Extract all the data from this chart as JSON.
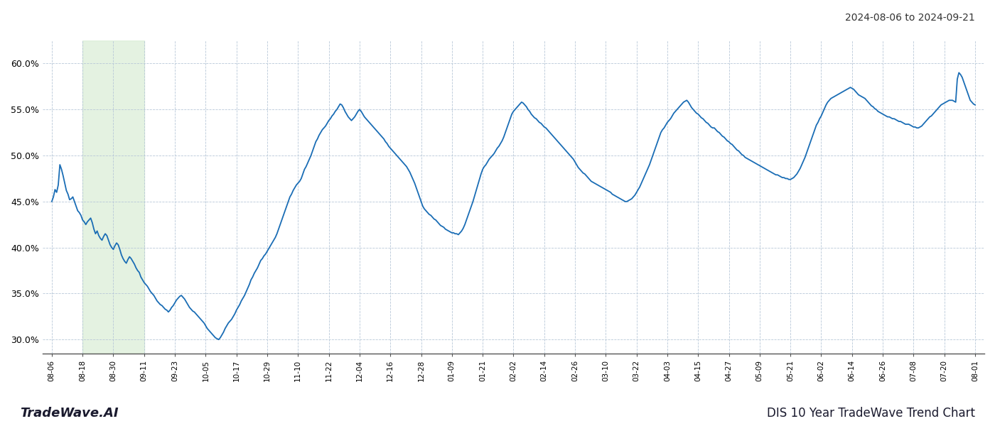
{
  "title_top_right": "2024-08-06 to 2024-09-21",
  "title_bottom_left": "TradeWave.AI",
  "title_bottom_right": "DIS 10 Year TradeWave Trend Chart",
  "ylim": [
    0.285,
    0.625
  ],
  "yticks": [
    0.3,
    0.35,
    0.4,
    0.45,
    0.5,
    0.55,
    0.6
  ],
  "line_color": "#1a6db5",
  "line_width": 1.3,
  "bg_color": "#ffffff",
  "grid_color": "#b8c8d8",
  "shade_color": "#d6ecd2",
  "shade_alpha": 0.65,
  "x_labels": [
    "08-06",
    "08-18",
    "08-30",
    "09-11",
    "09-23",
    "10-05",
    "10-17",
    "10-29",
    "11-10",
    "11-22",
    "12-04",
    "12-16",
    "12-28",
    "01-09",
    "01-21",
    "02-02",
    "02-14",
    "02-26",
    "03-10",
    "03-22",
    "04-03",
    "04-15",
    "04-27",
    "05-09",
    "05-21",
    "06-02",
    "06-14",
    "06-26",
    "07-08",
    "07-20",
    "08-01"
  ],
  "shade_label_start": "08-18",
  "shade_label_end": "09-11",
  "values": [
    0.45,
    0.455,
    0.463,
    0.46,
    0.468,
    0.49,
    0.485,
    0.478,
    0.47,
    0.462,
    0.458,
    0.452,
    0.453,
    0.455,
    0.45,
    0.445,
    0.44,
    0.438,
    0.435,
    0.43,
    0.428,
    0.425,
    0.428,
    0.43,
    0.432,
    0.427,
    0.42,
    0.415,
    0.418,
    0.413,
    0.41,
    0.408,
    0.412,
    0.415,
    0.413,
    0.408,
    0.403,
    0.4,
    0.398,
    0.402,
    0.405,
    0.403,
    0.398,
    0.392,
    0.388,
    0.385,
    0.383,
    0.387,
    0.39,
    0.388,
    0.385,
    0.382,
    0.378,
    0.375,
    0.373,
    0.368,
    0.365,
    0.362,
    0.36,
    0.358,
    0.355,
    0.352,
    0.35,
    0.348,
    0.345,
    0.342,
    0.34,
    0.338,
    0.337,
    0.335,
    0.333,
    0.332,
    0.33,
    0.332,
    0.335,
    0.337,
    0.34,
    0.343,
    0.345,
    0.347,
    0.348,
    0.346,
    0.344,
    0.341,
    0.338,
    0.335,
    0.333,
    0.331,
    0.33,
    0.328,
    0.326,
    0.324,
    0.322,
    0.32,
    0.318,
    0.315,
    0.312,
    0.31,
    0.308,
    0.306,
    0.304,
    0.302,
    0.301,
    0.3,
    0.302,
    0.305,
    0.308,
    0.312,
    0.315,
    0.318,
    0.32,
    0.322,
    0.325,
    0.328,
    0.332,
    0.335,
    0.338,
    0.342,
    0.345,
    0.348,
    0.352,
    0.356,
    0.36,
    0.365,
    0.368,
    0.372,
    0.375,
    0.378,
    0.382,
    0.386,
    0.388,
    0.391,
    0.393,
    0.396,
    0.399,
    0.402,
    0.405,
    0.408,
    0.411,
    0.415,
    0.42,
    0.425,
    0.43,
    0.435,
    0.44,
    0.445,
    0.45,
    0.455,
    0.458,
    0.462,
    0.465,
    0.468,
    0.47,
    0.472,
    0.475,
    0.48,
    0.485,
    0.488,
    0.492,
    0.496,
    0.5,
    0.505,
    0.51,
    0.515,
    0.518,
    0.522,
    0.525,
    0.528,
    0.53,
    0.532,
    0.535,
    0.538,
    0.54,
    0.543,
    0.545,
    0.548,
    0.55,
    0.553,
    0.556,
    0.555,
    0.552,
    0.548,
    0.545,
    0.542,
    0.54,
    0.538,
    0.54,
    0.542,
    0.545,
    0.548,
    0.55,
    0.548,
    0.545,
    0.542,
    0.54,
    0.538,
    0.536,
    0.534,
    0.532,
    0.53,
    0.528,
    0.526,
    0.524,
    0.522,
    0.52,
    0.518,
    0.515,
    0.513,
    0.51,
    0.508,
    0.506,
    0.504,
    0.502,
    0.5,
    0.498,
    0.496,
    0.494,
    0.492,
    0.49,
    0.488,
    0.485,
    0.482,
    0.478,
    0.474,
    0.47,
    0.465,
    0.46,
    0.455,
    0.45,
    0.445,
    0.442,
    0.44,
    0.438,
    0.436,
    0.435,
    0.433,
    0.431,
    0.43,
    0.428,
    0.426,
    0.424,
    0.423,
    0.422,
    0.42,
    0.419,
    0.418,
    0.417,
    0.416,
    0.416,
    0.415,
    0.415,
    0.414,
    0.416,
    0.418,
    0.421,
    0.425,
    0.43,
    0.435,
    0.44,
    0.445,
    0.45,
    0.456,
    0.462,
    0.468,
    0.474,
    0.48,
    0.485,
    0.488,
    0.49,
    0.493,
    0.496,
    0.498,
    0.5,
    0.502,
    0.505,
    0.508,
    0.51,
    0.513,
    0.516,
    0.52,
    0.525,
    0.53,
    0.535,
    0.54,
    0.545,
    0.548,
    0.55,
    0.552,
    0.554,
    0.556,
    0.558,
    0.557,
    0.555,
    0.553,
    0.55,
    0.548,
    0.545,
    0.543,
    0.541,
    0.54,
    0.538,
    0.536,
    0.535,
    0.533,
    0.531,
    0.53,
    0.528,
    0.526,
    0.524,
    0.522,
    0.52,
    0.518,
    0.516,
    0.514,
    0.512,
    0.51,
    0.508,
    0.506,
    0.504,
    0.502,
    0.5,
    0.498,
    0.496,
    0.493,
    0.49,
    0.487,
    0.485,
    0.483,
    0.481,
    0.48,
    0.478,
    0.476,
    0.474,
    0.472,
    0.471,
    0.47,
    0.469,
    0.468,
    0.467,
    0.466,
    0.465,
    0.464,
    0.463,
    0.462,
    0.461,
    0.46,
    0.458,
    0.457,
    0.456,
    0.455,
    0.454,
    0.453,
    0.452,
    0.451,
    0.45,
    0.45,
    0.451,
    0.452,
    0.453,
    0.455,
    0.457,
    0.46,
    0.463,
    0.466,
    0.47,
    0.474,
    0.478,
    0.482,
    0.486,
    0.49,
    0.495,
    0.5,
    0.505,
    0.51,
    0.515,
    0.52,
    0.525,
    0.528,
    0.53,
    0.533,
    0.536,
    0.538,
    0.54,
    0.543,
    0.546,
    0.548,
    0.55,
    0.552,
    0.554,
    0.556,
    0.558,
    0.559,
    0.56,
    0.558,
    0.555,
    0.552,
    0.55,
    0.548,
    0.546,
    0.545,
    0.543,
    0.541,
    0.54,
    0.538,
    0.536,
    0.535,
    0.533,
    0.531,
    0.53,
    0.53,
    0.528,
    0.526,
    0.525,
    0.523,
    0.521,
    0.52,
    0.518,
    0.516,
    0.515,
    0.513,
    0.512,
    0.51,
    0.508,
    0.506,
    0.505,
    0.503,
    0.501,
    0.5,
    0.498,
    0.497,
    0.496,
    0.495,
    0.494,
    0.493,
    0.492,
    0.491,
    0.49,
    0.489,
    0.488,
    0.487,
    0.486,
    0.485,
    0.484,
    0.483,
    0.482,
    0.481,
    0.48,
    0.479,
    0.479,
    0.478,
    0.477,
    0.476,
    0.476,
    0.475,
    0.475,
    0.474,
    0.474,
    0.475,
    0.476,
    0.478,
    0.48,
    0.483,
    0.486,
    0.49,
    0.494,
    0.498,
    0.503,
    0.508,
    0.513,
    0.518,
    0.523,
    0.528,
    0.533,
    0.536,
    0.54,
    0.543,
    0.547,
    0.551,
    0.555,
    0.558,
    0.56,
    0.562,
    0.563,
    0.564,
    0.565,
    0.566,
    0.567,
    0.568,
    0.569,
    0.57,
    0.571,
    0.572,
    0.573,
    0.574,
    0.573,
    0.572,
    0.57,
    0.568,
    0.566,
    0.565,
    0.564,
    0.563,
    0.562,
    0.56,
    0.558,
    0.556,
    0.554,
    0.553,
    0.551,
    0.55,
    0.548,
    0.547,
    0.546,
    0.545,
    0.544,
    0.543,
    0.542,
    0.542,
    0.541,
    0.54,
    0.54,
    0.539,
    0.538,
    0.537,
    0.537,
    0.536,
    0.535,
    0.534,
    0.534,
    0.534,
    0.533,
    0.532,
    0.531,
    0.531,
    0.53,
    0.53,
    0.531,
    0.532,
    0.534,
    0.536,
    0.538,
    0.54,
    0.542,
    0.543,
    0.545,
    0.547,
    0.549,
    0.551,
    0.553,
    0.555,
    0.556,
    0.557,
    0.558,
    0.559,
    0.56,
    0.56,
    0.56,
    0.559,
    0.558,
    0.583,
    0.59,
    0.588,
    0.585,
    0.58,
    0.575,
    0.57,
    0.565,
    0.56,
    0.558,
    0.556,
    0.555
  ]
}
